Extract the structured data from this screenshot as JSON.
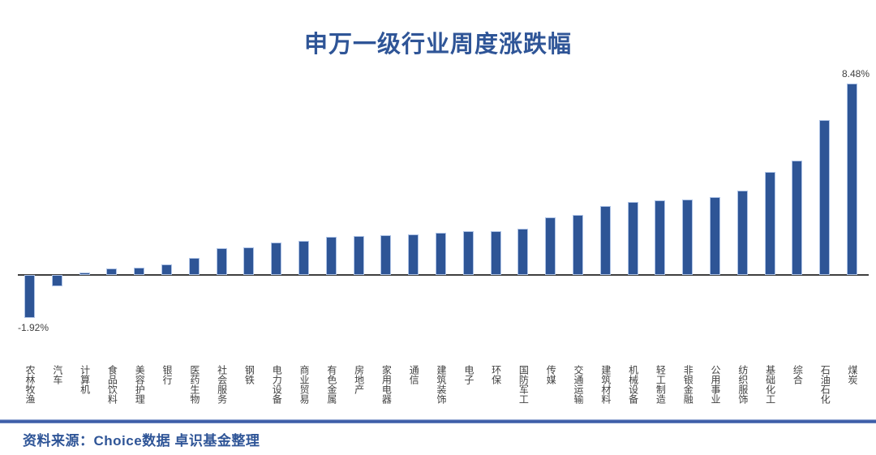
{
  "chart_data": {
    "type": "bar",
    "title": "申万一级行业周度涨跌幅",
    "unit": "%",
    "grid": false,
    "legend": "none",
    "ylim": [
      -2.5,
      9.5
    ],
    "bar_color": "#2E5596",
    "bar_border_color": "#AEC3E6",
    "axis_color": "#3F3F3F",
    "categories": [
      "农林牧渔",
      "汽车",
      "计算机",
      "食品饮料",
      "美容护理",
      "银行",
      "医药生物",
      "社会服务",
      "钢铁",
      "电力设备",
      "商业贸易",
      "有色金属",
      "房地产",
      "家用电器",
      "通信",
      "建筑装饰",
      "电子",
      "环保",
      "国防军工",
      "传媒",
      "交通运输",
      "建筑材料",
      "机械设备",
      "轻工制造",
      "非银金融",
      "公用事业",
      "纺织服饰",
      "基础化工",
      "综合",
      "石油石化",
      "煤炭"
    ],
    "values": [
      -1.92,
      -0.52,
      0.12,
      0.29,
      0.33,
      0.45,
      0.77,
      1.19,
      1.22,
      1.45,
      1.52,
      1.69,
      1.71,
      1.77,
      1.8,
      1.87,
      1.93,
      1.96,
      2.04,
      2.55,
      2.65,
      3.06,
      3.24,
      3.3,
      3.35,
      3.45,
      3.75,
      4.56,
      5.06,
      6.88,
      8.48
    ],
    "point_labels": [
      {
        "index": 0,
        "text": "-1.92%",
        "position": "below"
      },
      {
        "index": 30,
        "text": "8.48%",
        "position": "above"
      }
    ]
  },
  "footer": {
    "source_text": "资料来源：Choice数据  卓识基金整理"
  },
  "colors": {
    "title": "#2F5597",
    "axis": "#3F3F3F",
    "category_label": "#404040",
    "point_label": "#404040",
    "footer_text": "#2F5597",
    "divider": "#3D5DA8"
  }
}
